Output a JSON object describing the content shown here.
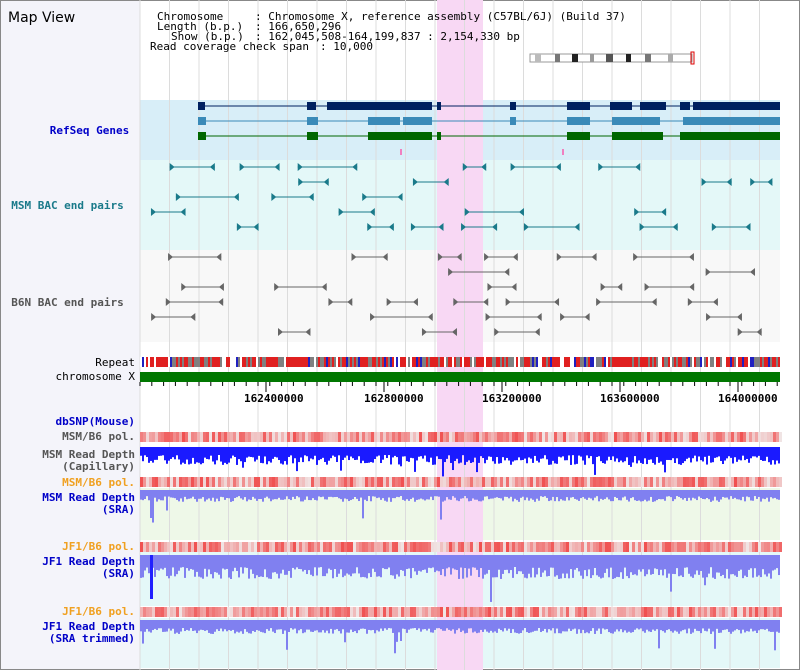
{
  "page": {
    "title": "Map View"
  },
  "header": {
    "chromosome_key": "Chromosome",
    "chromosome_val": ": Chromosome X, reference assembly (C57BL/6J) (Build 37)",
    "length_key": "Length (b.p.)",
    "length_val": ": 166,650,296",
    "show_key": "Show (b.p.)",
    "show_val": ": 162,045,508-164,199,837 : 2,154,330 bp",
    "coverage_key": "Read coverage check span",
    "coverage_val": ": 10,000"
  },
  "tracks": {
    "refseq": "RefSeq Genes",
    "msm_bac": "MSM BAC end pairs",
    "b6n_bac": "B6N BAC end pairs",
    "repeat": "Repeat",
    "chromosome": "chromosome X",
    "dbsnp": "dbSNP(Mouse)",
    "msm_pol_1": "MSM/B6 pol.",
    "msm_depth_cap": "MSM Read Depth\n(Capillary)",
    "msm_pol_2": "MSM/B6 pol.",
    "msm_depth_sra": "MSM Read Depth\n(SRA)",
    "jf1_pol_1": "JF1/B6 pol.",
    "jf1_depth_sra": "JF1 Read Depth\n(SRA)",
    "jf1_pol_2": "JF1/B6 pol.",
    "jf1_depth_trim": "JF1 Read Depth\n(SRA trimmed)"
  },
  "axis": {
    "ticks": [
      "162400000",
      "162800000",
      "163200000",
      "163600000",
      "164000000"
    ]
  },
  "colors": {
    "highlight": "#f8d8f4",
    "refseq_bg": "#d8eef8",
    "msm_bac_bg": "#e4f8f8",
    "chromosome": "#007700",
    "depth_blue": "#1a1aff",
    "depth_light": "#8080f0",
    "pol_red": "#f04040"
  }
}
